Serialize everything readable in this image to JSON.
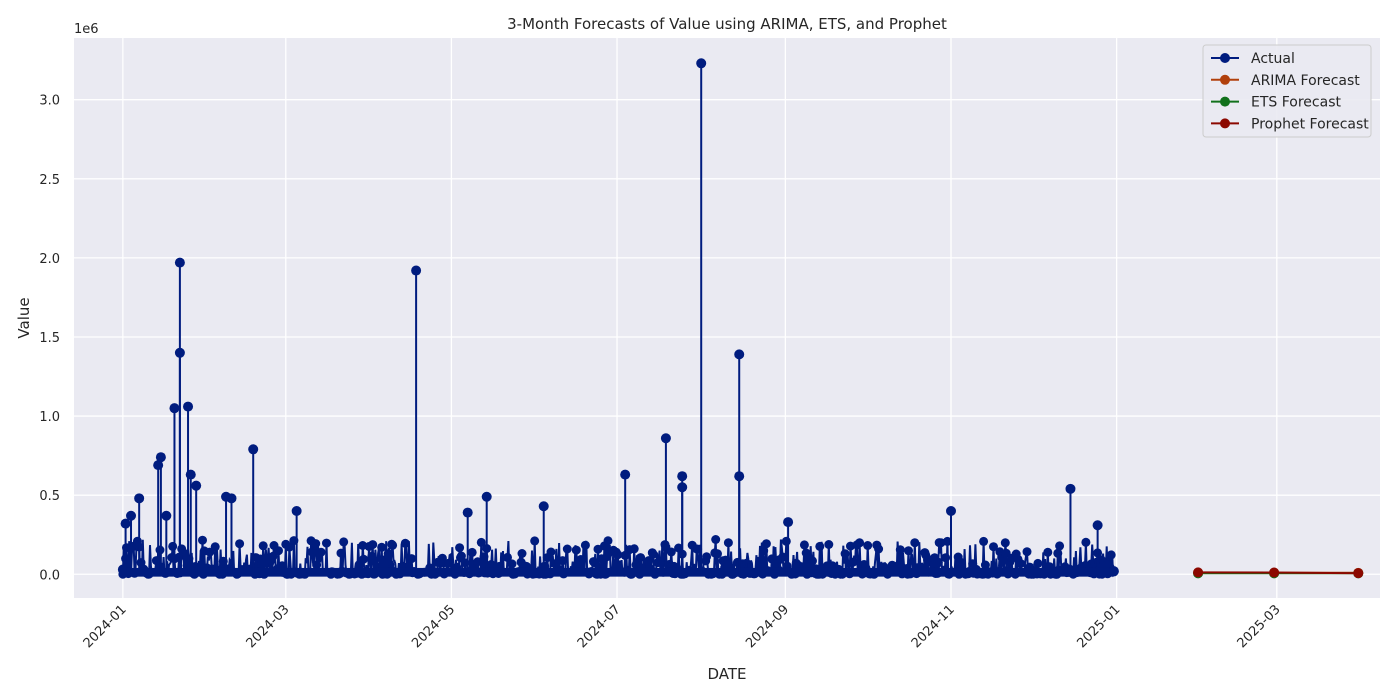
{
  "chart_data": {
    "type": "line",
    "title": "3-Month Forecasts of Value using ARIMA, ETS, and Prophet",
    "xlabel": "DATE",
    "ylabel": "Value",
    "y_offset_label": "1e6",
    "ylim": [
      -150000,
      3390000
    ],
    "xlim": [
      "2023-12-14",
      "2025-04-08"
    ],
    "grid": true,
    "legend_position": "top-right",
    "x_ticks": [
      "2024-01",
      "2024-03",
      "2024-05",
      "2024-07",
      "2024-09",
      "2024-11",
      "2025-01",
      "2025-03"
    ],
    "y_ticks": [
      {
        "value": 0,
        "label": "0.0"
      },
      {
        "value": 500000,
        "label": "0.5"
      },
      {
        "value": 1000000,
        "label": "1.0"
      },
      {
        "value": 1500000,
        "label": "1.5"
      },
      {
        "value": 2000000,
        "label": "2.0"
      },
      {
        "value": 2500000,
        "label": "2.5"
      },
      {
        "value": 3000000,
        "label": "3.0"
      }
    ],
    "colors": {
      "background": "#eaeaf2",
      "grid": "#ffffff",
      "Actual": "#001c7f",
      "ARIMA Forecast": "#b1400d",
      "ETS Forecast": "#12711c",
      "Prophet Forecast": "#8c0800"
    },
    "series": [
      {
        "name": "Actual",
        "note": "many daily points; notable spikes listed",
        "x": [
          "2024-01-01",
          "2024-01-02",
          "2024-01-04",
          "2024-01-07",
          "2024-01-14",
          "2024-01-15",
          "2024-01-17",
          "2024-01-20",
          "2024-01-22",
          "2024-01-22",
          "2024-01-25",
          "2024-01-26",
          "2024-01-28",
          "2024-02-08",
          "2024-02-10",
          "2024-02-18",
          "2024-03-05",
          "2024-04-18",
          "2024-05-07",
          "2024-05-14",
          "2024-06-04",
          "2024-07-04",
          "2024-07-19",
          "2024-07-25",
          "2024-07-25",
          "2024-08-01",
          "2024-08-15",
          "2024-08-15",
          "2024-09-02",
          "2024-11-01",
          "2024-12-15",
          "2024-12-25",
          "2024-12-31"
        ],
        "values": [
          30000,
          320000,
          370000,
          480000,
          690000,
          740000,
          370000,
          1050000,
          1970000,
          1400000,
          1060000,
          630000,
          560000,
          490000,
          480000,
          790000,
          400000,
          1920000,
          390000,
          490000,
          430000,
          630000,
          860000,
          620000,
          550000,
          3230000,
          1390000,
          620000,
          330000,
          400000,
          540000,
          310000,
          20000
        ]
      },
      {
        "name": "ARIMA Forecast",
        "x": [
          "2025-01-31",
          "2025-02-28",
          "2025-03-31"
        ],
        "values": [
          10000,
          10000,
          9000
        ]
      },
      {
        "name": "ETS Forecast",
        "x": [
          "2025-01-31",
          "2025-02-28",
          "2025-03-31"
        ],
        "values": [
          6000,
          6000,
          6000
        ]
      },
      {
        "name": "Prophet Forecast",
        "x": [
          "2025-01-31",
          "2025-02-28",
          "2025-03-31"
        ],
        "values": [
          12000,
          11000,
          7000
        ]
      }
    ]
  }
}
